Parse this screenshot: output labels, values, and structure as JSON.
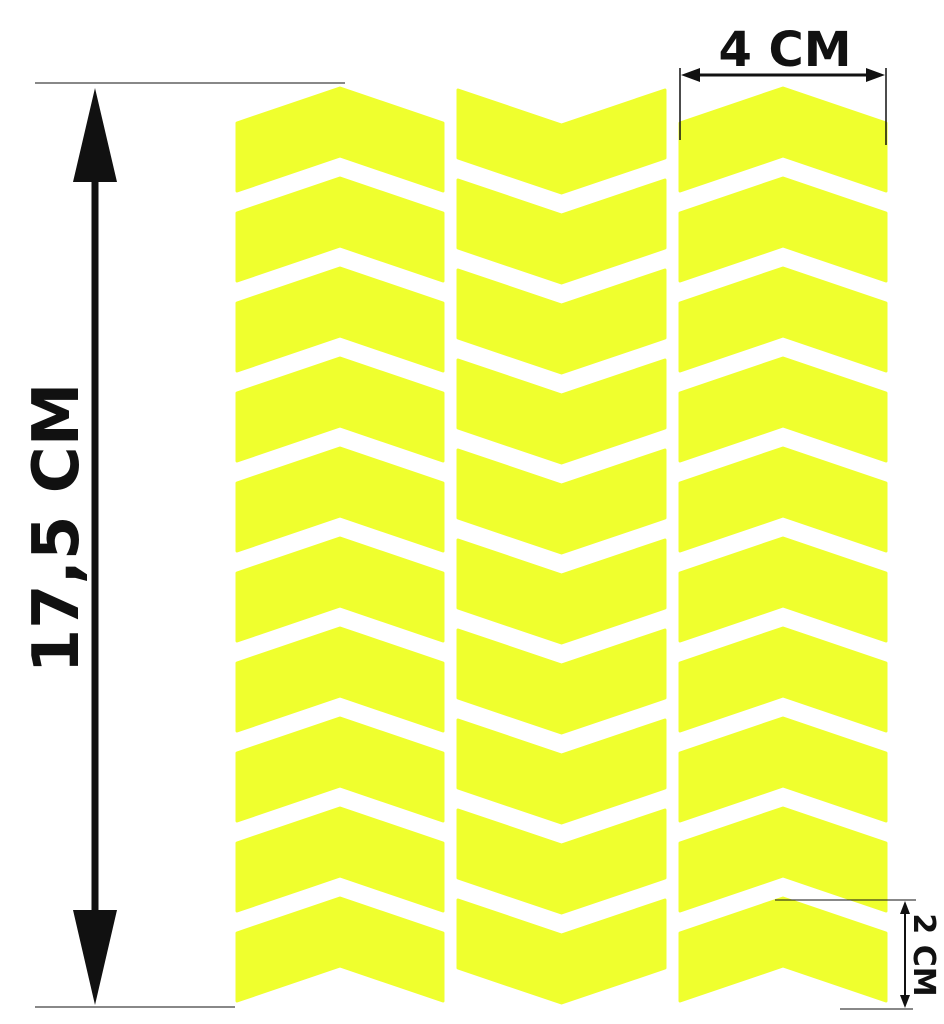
{
  "colors": {
    "sticker": "#EFFF2E",
    "dimension_lines": "#111111",
    "background": "#FFFFFF"
  },
  "dimensions": {
    "height_label": "17,5 СМ",
    "width_label": "4 СМ",
    "piece_height_label": "2 СМ"
  }
}
